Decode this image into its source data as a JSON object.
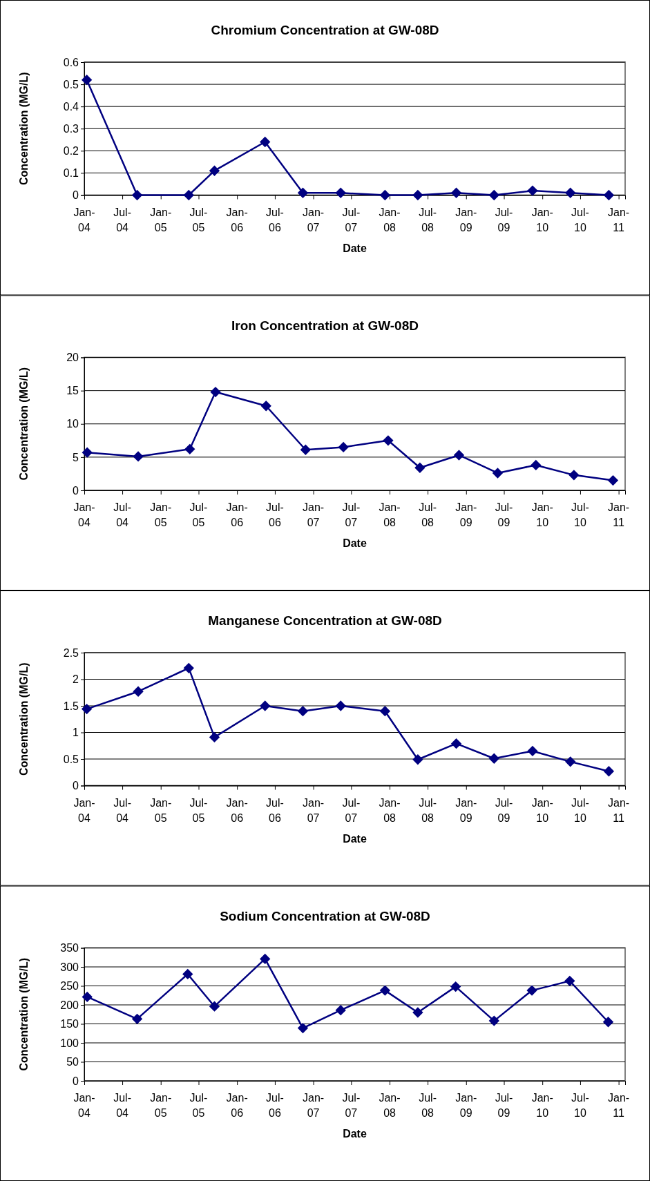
{
  "chart_data": [
    {
      "type": "line",
      "title": "Chromium Concentration at GW-08D",
      "xlabel": "Date",
      "ylabel": "Concentration (MG/L)",
      "x": [
        "2004-01-13",
        "2004-09-10",
        "2005-05-15",
        "2005-09-15",
        "2006-05-15",
        "2006-11-12",
        "2007-05-12",
        "2007-12-10",
        "2008-05-15",
        "2008-11-15",
        "2009-05-15",
        "2009-11-15",
        "2010-05-15",
        "2010-11-15"
      ],
      "series": [
        {
          "color": "#000080",
          "values": [
            0.52,
            0,
            0,
            0.11,
            0.24,
            0.01,
            0.01,
            0,
            0,
            0.01,
            0,
            0.02,
            0.01,
            0
          ]
        }
      ],
      "xlim": [
        "2004-01-01",
        "2011-02-01"
      ],
      "xticks": [
        {
          "value": "2004-01-01",
          "label": "Jan-04"
        },
        {
          "value": "2004-07-01",
          "label": "Jul-04"
        },
        {
          "value": "2005-01-01",
          "label": "Jan-05"
        },
        {
          "value": "2005-07-01",
          "label": "Jul-05"
        },
        {
          "value": "2006-01-01",
          "label": "Jan-06"
        },
        {
          "value": "2006-07-01",
          "label": "Jul-06"
        },
        {
          "value": "2007-01-01",
          "label": "Jan-07"
        },
        {
          "value": "2007-07-01",
          "label": "Jul-07"
        },
        {
          "value": "2008-01-01",
          "label": "Jan-08"
        },
        {
          "value": "2008-07-01",
          "label": "Jul-08"
        },
        {
          "value": "2009-01-01",
          "label": "Jan-09"
        },
        {
          "value": "2009-07-01",
          "label": "Jul-09"
        },
        {
          "value": "2010-01-01",
          "label": "Jan-10"
        },
        {
          "value": "2010-07-01",
          "label": "Jul-10"
        },
        {
          "value": "2011-01-01",
          "label": "Jan-11"
        }
      ],
      "ylim": [
        0,
        0.6
      ],
      "yticks": [
        0,
        0.1,
        0.2,
        0.3,
        0.4,
        0.5,
        0.6
      ],
      "grid": "y",
      "marker": "diamond",
      "line_style": "solid"
    },
    {
      "type": "line",
      "title": "Iron Concentration at GW-08D",
      "xlabel": "Date",
      "ylabel": "Concentration (MG/L)",
      "x": [
        "2004-01-15",
        "2004-09-15",
        "2005-05-20",
        "2005-09-20",
        "2006-05-20",
        "2006-11-25",
        "2007-05-25",
        "2007-12-25",
        "2008-05-25",
        "2008-11-28",
        "2009-06-01",
        "2009-12-01",
        "2010-06-01",
        "2010-12-05"
      ],
      "series": [
        {
          "color": "#000080",
          "values": [
            5.7,
            5.1,
            6.2,
            14.8,
            12.7,
            6.1,
            6.5,
            7.5,
            3.4,
            5.3,
            2.6,
            3.8,
            2.3,
            1.5
          ]
        }
      ],
      "xlim": [
        "2004-01-01",
        "2011-02-01"
      ],
      "xticks": [
        {
          "value": "2004-01-01",
          "label": "Jan-04"
        },
        {
          "value": "2004-07-01",
          "label": "Jul-04"
        },
        {
          "value": "2005-01-01",
          "label": "Jan-05"
        },
        {
          "value": "2005-07-01",
          "label": "Jul-05"
        },
        {
          "value": "2006-01-01",
          "label": "Jan-06"
        },
        {
          "value": "2006-07-01",
          "label": "Jul-06"
        },
        {
          "value": "2007-01-01",
          "label": "Jan-07"
        },
        {
          "value": "2007-07-01",
          "label": "Jul-07"
        },
        {
          "value": "2008-01-01",
          "label": "Jan-08"
        },
        {
          "value": "2008-07-01",
          "label": "Jul-08"
        },
        {
          "value": "2009-01-01",
          "label": "Jan-09"
        },
        {
          "value": "2009-07-01",
          "label": "Jul-09"
        },
        {
          "value": "2010-01-01",
          "label": "Jan-10"
        },
        {
          "value": "2010-07-01",
          "label": "Jul-10"
        },
        {
          "value": "2011-01-01",
          "label": "Jan-11"
        }
      ],
      "ylim": [
        0,
        20
      ],
      "yticks": [
        0,
        5,
        10,
        15,
        20
      ],
      "grid": "y",
      "marker": "diamond",
      "line_style": "solid"
    },
    {
      "type": "line",
      "title": "Manganese Concentration at GW-08D",
      "xlabel": "Date",
      "ylabel": "Concentration (MG/L)",
      "x": [
        "2004-01-13",
        "2004-09-15",
        "2005-05-15",
        "2005-09-15",
        "2006-05-15",
        "2006-11-12",
        "2007-05-12",
        "2007-12-10",
        "2008-05-15",
        "2008-11-15",
        "2009-05-15",
        "2009-11-15",
        "2010-05-15",
        "2010-11-15"
      ],
      "series": [
        {
          "color": "#000080",
          "values": [
            1.44,
            1.77,
            2.21,
            0.91,
            1.5,
            1.4,
            1.5,
            1.4,
            0.49,
            0.79,
            0.51,
            0.65,
            0.45,
            0.27
          ]
        }
      ],
      "xlim": [
        "2004-01-01",
        "2011-02-01"
      ],
      "xticks": [
        {
          "value": "2004-01-01",
          "label": "Jan-04"
        },
        {
          "value": "2004-07-01",
          "label": "Jul-04"
        },
        {
          "value": "2005-01-01",
          "label": "Jan-05"
        },
        {
          "value": "2005-07-01",
          "label": "Jul-05"
        },
        {
          "value": "2006-01-01",
          "label": "Jan-06"
        },
        {
          "value": "2006-07-01",
          "label": "Jul-06"
        },
        {
          "value": "2007-01-01",
          "label": "Jan-07"
        },
        {
          "value": "2007-07-01",
          "label": "Jul-07"
        },
        {
          "value": "2008-01-01",
          "label": "Jan-08"
        },
        {
          "value": "2008-07-01",
          "label": "Jul-08"
        },
        {
          "value": "2009-01-01",
          "label": "Jan-09"
        },
        {
          "value": "2009-07-01",
          "label": "Jul-09"
        },
        {
          "value": "2010-01-01",
          "label": "Jan-10"
        },
        {
          "value": "2010-07-01",
          "label": "Jul-10"
        },
        {
          "value": "2011-01-01",
          "label": "Jan-11"
        }
      ],
      "ylim": [
        0,
        2.5
      ],
      "yticks": [
        0,
        0.5,
        1,
        1.5,
        2,
        2.5
      ],
      "grid": "y",
      "marker": "diamond",
      "line_style": "solid"
    },
    {
      "type": "line",
      "title": "Sodium Concentration at GW-08D",
      "xlabel": "Date",
      "ylabel": "Concentration (MG/L)",
      "x": [
        "2004-01-15",
        "2004-09-10",
        "2005-05-10",
        "2005-09-15",
        "2006-05-15",
        "2006-11-12",
        "2007-05-12",
        "2007-12-10",
        "2008-05-15",
        "2008-11-12",
        "2009-05-15",
        "2009-11-12",
        "2010-05-12",
        "2010-11-12"
      ],
      "series": [
        {
          "color": "#000080",
          "values": [
            221,
            163,
            281,
            196,
            321,
            139,
            186,
            238,
            180,
            248,
            158,
            238,
            263,
            155
          ]
        }
      ],
      "xlim": [
        "2004-01-01",
        "2011-02-01"
      ],
      "xticks": [
        {
          "value": "2004-01-01",
          "label": "Jan-04"
        },
        {
          "value": "2004-07-01",
          "label": "Jul-04"
        },
        {
          "value": "2005-01-01",
          "label": "Jan-05"
        },
        {
          "value": "2005-07-01",
          "label": "Jul-05"
        },
        {
          "value": "2006-01-01",
          "label": "Jan-06"
        },
        {
          "value": "2006-07-01",
          "label": "Jul-06"
        },
        {
          "value": "2007-01-01",
          "label": "Jan-07"
        },
        {
          "value": "2007-07-01",
          "label": "Jul-07"
        },
        {
          "value": "2008-01-01",
          "label": "Jan-08"
        },
        {
          "value": "2008-07-01",
          "label": "Jul-08"
        },
        {
          "value": "2009-01-01",
          "label": "Jan-09"
        },
        {
          "value": "2009-07-01",
          "label": "Jul-09"
        },
        {
          "value": "2010-01-01",
          "label": "Jan-10"
        },
        {
          "value": "2010-07-01",
          "label": "Jul-10"
        },
        {
          "value": "2011-01-01",
          "label": "Jan-11"
        }
      ],
      "ylim": [
        0,
        350
      ],
      "yticks": [
        0,
        50,
        100,
        150,
        200,
        250,
        300,
        350
      ],
      "grid": "y",
      "marker": "diamond",
      "line_style": "solid"
    }
  ]
}
